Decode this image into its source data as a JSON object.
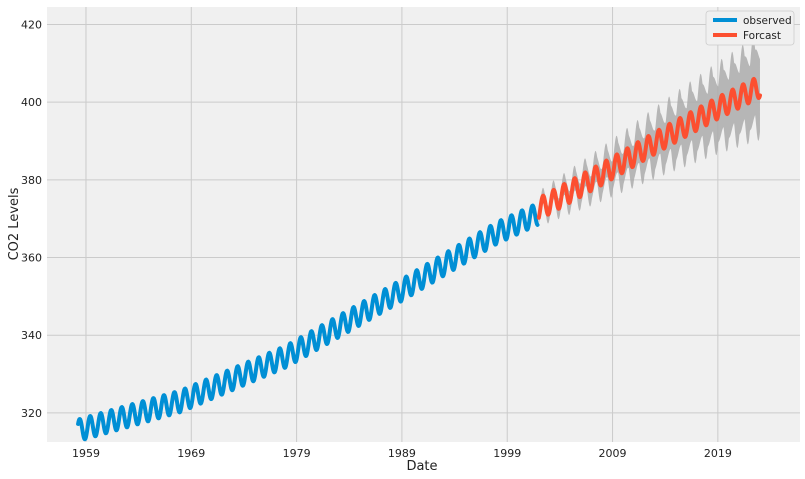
{
  "chart_data": {
    "type": "line",
    "title": "",
    "xlabel": "Date",
    "ylabel": "CO2 Levels",
    "xlim": [
      1955.3,
      2026.8
    ],
    "ylim": [
      312.5,
      424.5
    ],
    "xticks": [
      1959,
      1969,
      1979,
      1989,
      1999,
      2009,
      2019
    ],
    "yticks": [
      320,
      340,
      360,
      380,
      400,
      420
    ],
    "grid": true,
    "legend": "top-right",
    "colors": {
      "observed": "#008fd5",
      "forecast": "#fc4f30",
      "ci": "#a8a8a8",
      "background": "#f0f0f0",
      "grid": "#cbcbcb"
    },
    "series": [
      {
        "name": "observed",
        "x_start": 1958.25,
        "x_end": 2001.9,
        "trend": {
          "x": [
            1958.25,
            1968,
            1978,
            1988,
            1998,
            2001.9
          ],
          "y": [
            315.5,
            323.0,
            334.5,
            350.0,
            366.3,
            371.2
          ]
        },
        "seasonal_amplitude": 2.8
      },
      {
        "name": "Forcast",
        "x_start": 2002.0,
        "x_end": 2023.0,
        "trend": {
          "x": [
            2002,
            2008,
            2014,
            2019,
            2023
          ],
          "y": [
            372.5,
            381.5,
            391.0,
            398.5,
            404.0
          ]
        },
        "seasonal_amplitude": 2.8,
        "ci_halfwidth": {
          "x": [
            2002,
            2010,
            2023
          ],
          "y": [
            1.5,
            4.0,
            8.5
          ]
        },
        "ci_seasonal_amplitude": 2.8
      }
    ]
  }
}
